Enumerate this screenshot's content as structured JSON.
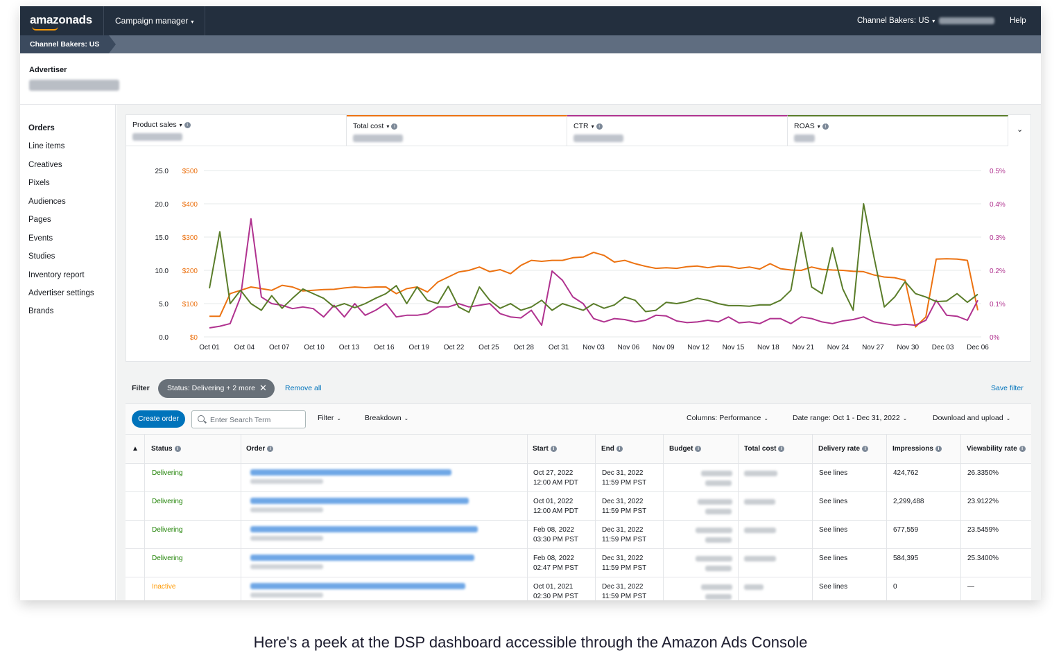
{
  "topbar": {
    "logo": "amazonads",
    "campaign_manager": "Campaign manager",
    "account": "Channel Bakers: US",
    "help": "Help"
  },
  "subbar": {
    "tab": "Channel Bakers: US"
  },
  "advertiser": {
    "label": "Advertiser"
  },
  "sidenav": [
    "Orders",
    "Line items",
    "Creatives",
    "Pixels",
    "Audiences",
    "Pages",
    "Events",
    "Studies",
    "Inventory report",
    "Advertiser settings",
    "Brands"
  ],
  "metrics": [
    {
      "label": "Product sales",
      "color": "#ffffff"
    },
    {
      "label": "Total cost",
      "color": "#ec7211"
    },
    {
      "label": "CTR",
      "color": "#b0328f"
    },
    {
      "label": "ROAS",
      "color": "#5a7d2a"
    }
  ],
  "chart_data": {
    "type": "line",
    "x_labels": [
      "Oct 01",
      "Oct 04",
      "Oct 07",
      "Oct 10",
      "Oct 13",
      "Oct 16",
      "Oct 19",
      "Oct 22",
      "Oct 25",
      "Oct 28",
      "Oct 31",
      "Nov 03",
      "Nov 06",
      "Nov 09",
      "Nov 12",
      "Nov 15",
      "Nov 18",
      "Nov 21",
      "Nov 24",
      "Nov 27",
      "Nov 30",
      "Dec 03",
      "Dec 06"
    ],
    "y_left_roas_ticks": [
      "0.0",
      "5.0",
      "10.0",
      "15.0",
      "20.0",
      "25.0"
    ],
    "y_left_cost_ticks": [
      "$0",
      "$100",
      "$200",
      "$300",
      "$400",
      "$500"
    ],
    "y_right_ctr_ticks": [
      "0%",
      "0.1%",
      "0.2%",
      "0.3%",
      "0.4%",
      "0.5%"
    ],
    "ylim_roas": [
      0,
      25
    ],
    "ylim_cost": [
      0,
      500
    ],
    "ylim_ctr": [
      0,
      0.5
    ],
    "series": [
      {
        "name": "Total cost",
        "color": "#ec7211",
        "axis": "cost",
        "values": [
          62,
          62,
          130,
          140,
          150,
          145,
          140,
          155,
          150,
          138,
          140,
          142,
          143,
          147,
          150,
          148,
          150,
          150,
          130,
          145,
          150,
          135,
          165,
          180,
          195,
          200,
          210,
          196,
          202,
          190,
          215,
          230,
          227,
          230,
          230,
          238,
          240,
          254,
          245,
          225,
          230,
          220,
          212,
          206,
          208,
          206,
          211,
          213,
          208,
          213,
          212,
          206,
          210,
          204,
          220,
          205,
          201,
          200,
          210,
          203,
          201,
          200,
          197,
          196,
          186,
          180,
          178,
          170,
          30,
          60,
          234,
          235,
          234,
          230,
          80
        ]
      },
      {
        "name": "CTR",
        "color": "#b0328f",
        "axis": "ctr",
        "values": [
          0.027,
          0.032,
          0.04,
          0.12,
          0.355,
          0.12,
          0.1,
          0.095,
          0.085,
          0.09,
          0.085,
          0.06,
          0.095,
          0.06,
          0.1,
          0.065,
          0.08,
          0.1,
          0.06,
          0.065,
          0.065,
          0.07,
          0.09,
          0.09,
          0.1,
          0.09,
          0.095,
          0.1,
          0.07,
          0.06,
          0.057,
          0.08,
          0.035,
          0.198,
          0.17,
          0.12,
          0.1,
          0.055,
          0.045,
          0.055,
          0.052,
          0.045,
          0.05,
          0.065,
          0.063,
          0.048,
          0.043,
          0.045,
          0.05,
          0.045,
          0.06,
          0.042,
          0.045,
          0.04,
          0.055,
          0.055,
          0.04,
          0.06,
          0.055,
          0.045,
          0.04,
          0.048,
          0.052,
          0.06,
          0.045,
          0.04,
          0.035,
          0.038,
          0.035,
          0.05,
          0.11,
          0.065,
          0.062,
          0.05,
          0.11
        ]
      },
      {
        "name": "ROAS",
        "color": "#5a7d2a",
        "axis": "roas",
        "values": [
          7.3,
          15.8,
          5.0,
          7.0,
          5.0,
          4.0,
          6.2,
          4.3,
          5.8,
          7.2,
          6.5,
          5.8,
          4.5,
          5.0,
          4.4,
          5.0,
          5.8,
          6.5,
          7.7,
          5.0,
          7.5,
          5.5,
          5.0,
          7.6,
          4.5,
          3.7,
          7.5,
          5.5,
          4.3,
          5.0,
          4.0,
          4.5,
          5.5,
          4.0,
          5.0,
          4.5,
          4.0,
          5.0,
          4.3,
          4.8,
          6.0,
          5.5,
          3.8,
          4.0,
          5.2,
          5.0,
          5.3,
          5.8,
          5.5,
          5.0,
          4.7,
          4.7,
          4.6,
          4.8,
          4.8,
          5.5,
          7.0,
          15.7,
          7.5,
          6.5,
          13.4,
          7.2,
          4.0,
          20.0,
          12.0,
          4.5,
          6.0,
          8.3,
          6.5,
          6.0,
          5.3,
          5.4,
          6.5,
          5.2,
          6.4
        ]
      }
    ]
  },
  "filter": {
    "label": "Filter",
    "pill": "Status: Delivering + 2 more",
    "remove_all": "Remove all",
    "save_filter": "Save filter"
  },
  "toolbar": {
    "create_order": "Create order",
    "search_placeholder": "Enter Search Term",
    "filter": "Filter",
    "breakdown": "Breakdown",
    "columns": "Columns: Performance",
    "date_range": "Date range: Oct 1 - Dec 31, 2022",
    "download": "Download and upload"
  },
  "table": {
    "headers": [
      "Status",
      "Order",
      "Start",
      "End",
      "Budget",
      "Total cost",
      "Delivery rate",
      "Impressions",
      "Viewability rate"
    ],
    "rows": [
      {
        "status": "Delivering",
        "start_date": "Oct 27, 2022",
        "start_time": "12:00 AM PDT",
        "end_date": "Dec 31, 2022",
        "end_time": "11:59 PM PST",
        "delivery": "See lines",
        "impressions": "424,762",
        "viewability": "26.3350%"
      },
      {
        "status": "Delivering",
        "start_date": "Oct 01, 2022",
        "start_time": "12:00 AM PDT",
        "end_date": "Dec 31, 2022",
        "end_time": "11:59 PM PST",
        "delivery": "See lines",
        "impressions": "2,299,488",
        "viewability": "23.9122%"
      },
      {
        "status": "Delivering",
        "start_date": "Feb 08, 2022",
        "start_time": "03:30 PM PST",
        "end_date": "Dec 31, 2022",
        "end_time": "11:59 PM PST",
        "delivery": "See lines",
        "impressions": "677,559",
        "viewability": "23.5459%"
      },
      {
        "status": "Delivering",
        "start_date": "Feb 08, 2022",
        "start_time": "02:47 PM PST",
        "end_date": "Dec 31, 2022",
        "end_time": "11:59 PM PST",
        "delivery": "See lines",
        "impressions": "584,395",
        "viewability": "25.3400%"
      },
      {
        "status": "Inactive",
        "start_date": "Oct 01, 2021",
        "start_time": "02:30 PM PST",
        "end_date": "Dec 31, 2022",
        "end_time": "11:59 PM PST",
        "delivery": "See lines",
        "impressions": "0",
        "viewability": "—"
      }
    ]
  },
  "caption": "Here's a peek at the DSP dashboard accessible through the Amazon Ads Console"
}
